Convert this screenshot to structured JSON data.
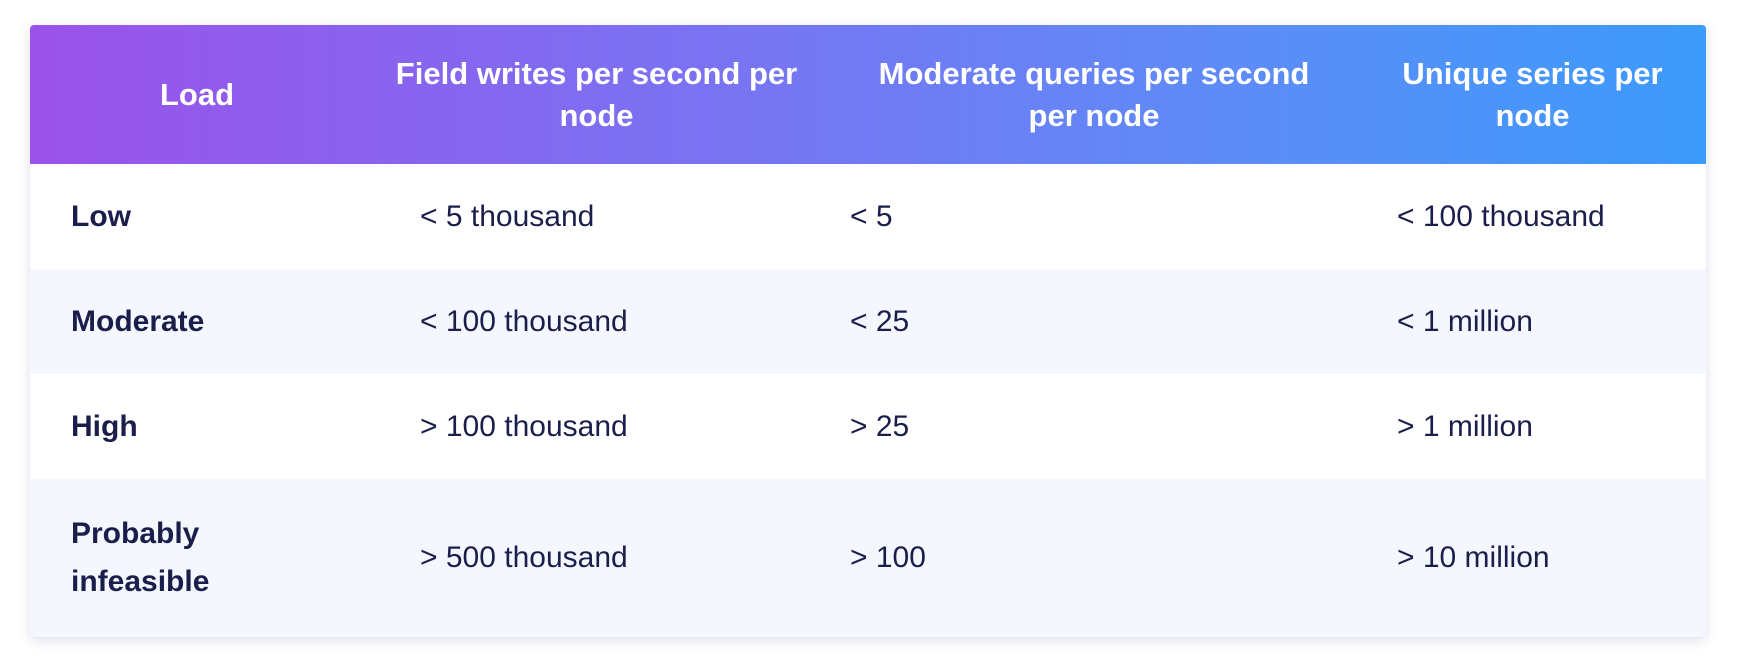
{
  "table": {
    "headers": {
      "load": "Load",
      "writes": "Field writes per second per node",
      "queries": "Moderate queries per second per node",
      "series": "Unique series per node"
    },
    "rows": [
      {
        "load": "Low",
        "writes": "< 5 thousand",
        "queries": "< 5",
        "series": "< 100 thousand"
      },
      {
        "load": "Moderate",
        "writes": "< 100 thousand",
        "queries": "< 25",
        "series": "< 1 million"
      },
      {
        "load": "High",
        "writes": "> 100 thousand",
        "queries": "> 25",
        "series": "> 1 million"
      },
      {
        "load": "Probably infeasible",
        "writes": "> 500 thousand",
        "queries": "> 100",
        "series": "> 10 million"
      }
    ]
  },
  "colors": {
    "header_gradient_start": "#9b52ea",
    "header_gradient_end": "#3c9bfb",
    "header_text": "#ffffff",
    "body_text": "#1b1e4b",
    "row_stripe": "#f4f7fd"
  }
}
